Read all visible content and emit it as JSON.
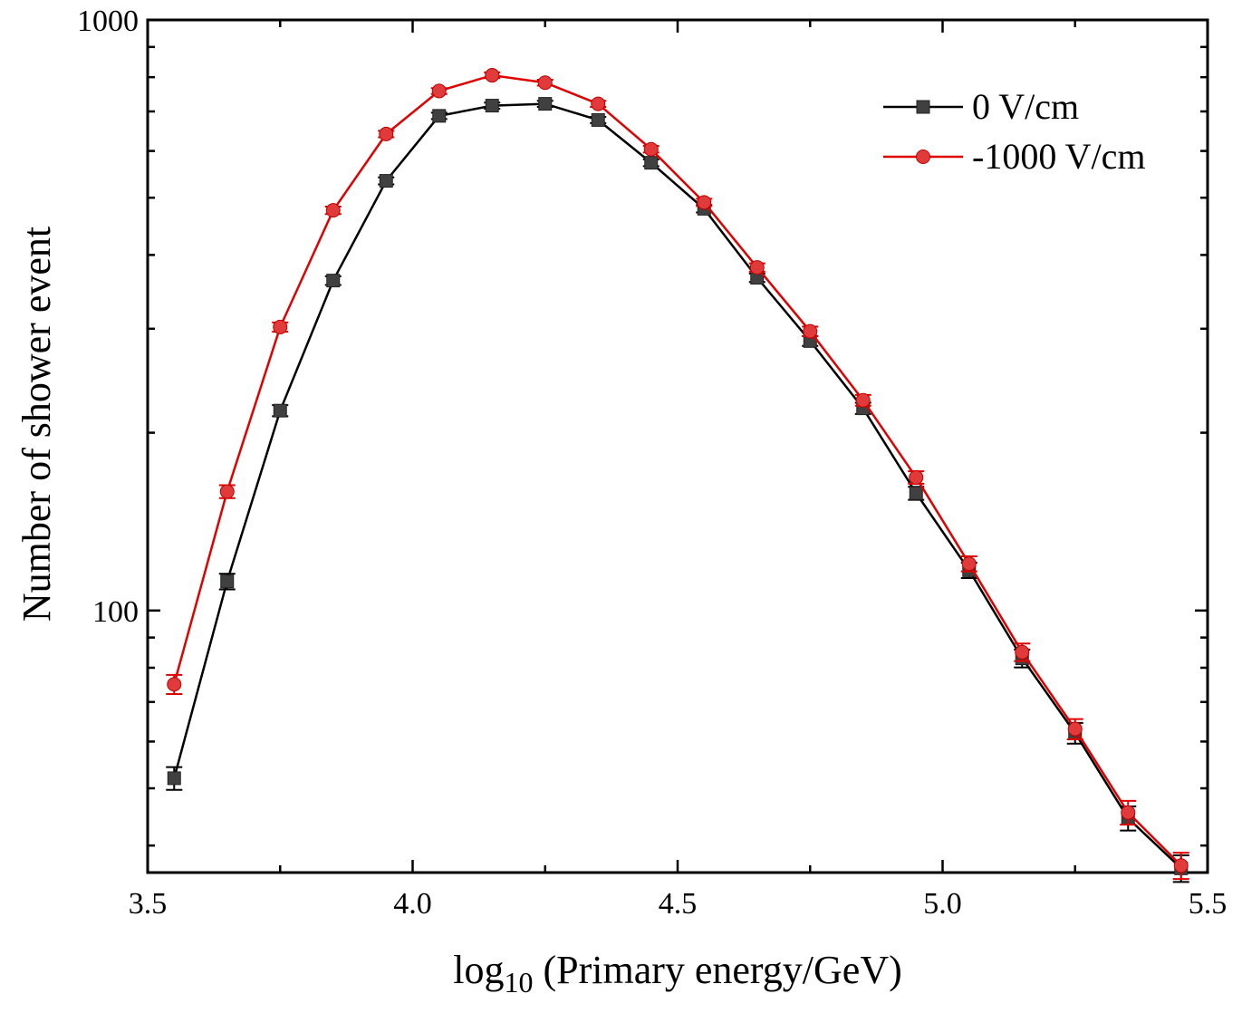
{
  "chart_data": {
    "type": "line",
    "title": "",
    "xlabel_main": "log",
    "xlabel_sub": "10",
    "xlabel_rest": " (Primary energy/GeV)",
    "ylabel": "Number of shower event",
    "xlim": [
      3.5,
      5.5
    ],
    "ylim": [
      36,
      1000
    ],
    "yscale": "log",
    "x_ticks": [
      "3.5",
      "4.0",
      "4.5",
      "5.0",
      "5.5"
    ],
    "x_tick_values": [
      3.5,
      4.0,
      4.5,
      5.0,
      5.5
    ],
    "y_ticks": [
      "100",
      "1000"
    ],
    "y_tick_values": [
      100,
      1000
    ],
    "legend_position": "top-right",
    "x": [
      3.55,
      3.65,
      3.75,
      3.85,
      3.95,
      4.05,
      4.15,
      4.25,
      4.35,
      4.45,
      4.55,
      4.65,
      4.75,
      4.85,
      4.95,
      5.05,
      5.15,
      5.25,
      5.35,
      5.45
    ],
    "series": [
      {
        "name": "0 V/cm",
        "color": "#000000",
        "marker_color": "#404040",
        "marker": "square",
        "values": [
          52,
          112,
          218,
          362,
          534,
          688,
          716,
          721,
          677,
          573,
          479,
          366,
          286,
          220,
          158,
          117,
          83,
          62,
          44.5,
          36.6
        ],
        "errors": [
          2.3,
          3.4,
          4.7,
          6.1,
          7.4,
          8.4,
          8.6,
          8.6,
          8.3,
          7.6,
          7.0,
          6.1,
          5.4,
          4.8,
          4.0,
          3.5,
          2.9,
          2.5,
          2.1,
          1.9
        ]
      },
      {
        "name": "-1000 V/cm",
        "color": "#e00000",
        "marker_color": "#e03a3a",
        "marker": "circle",
        "values": [
          75,
          159,
          302,
          476,
          641,
          758,
          806,
          783,
          721,
          604,
          491,
          381,
          297,
          227,
          168,
          120,
          85,
          63,
          45.5,
          37.0
        ],
        "errors": [
          2.8,
          4.0,
          5.5,
          6.9,
          8.0,
          8.7,
          9.0,
          8.9,
          8.6,
          7.8,
          7.0,
          6.2,
          5.5,
          4.8,
          4.1,
          3.5,
          2.9,
          2.5,
          2.1,
          1.9
        ]
      }
    ]
  }
}
